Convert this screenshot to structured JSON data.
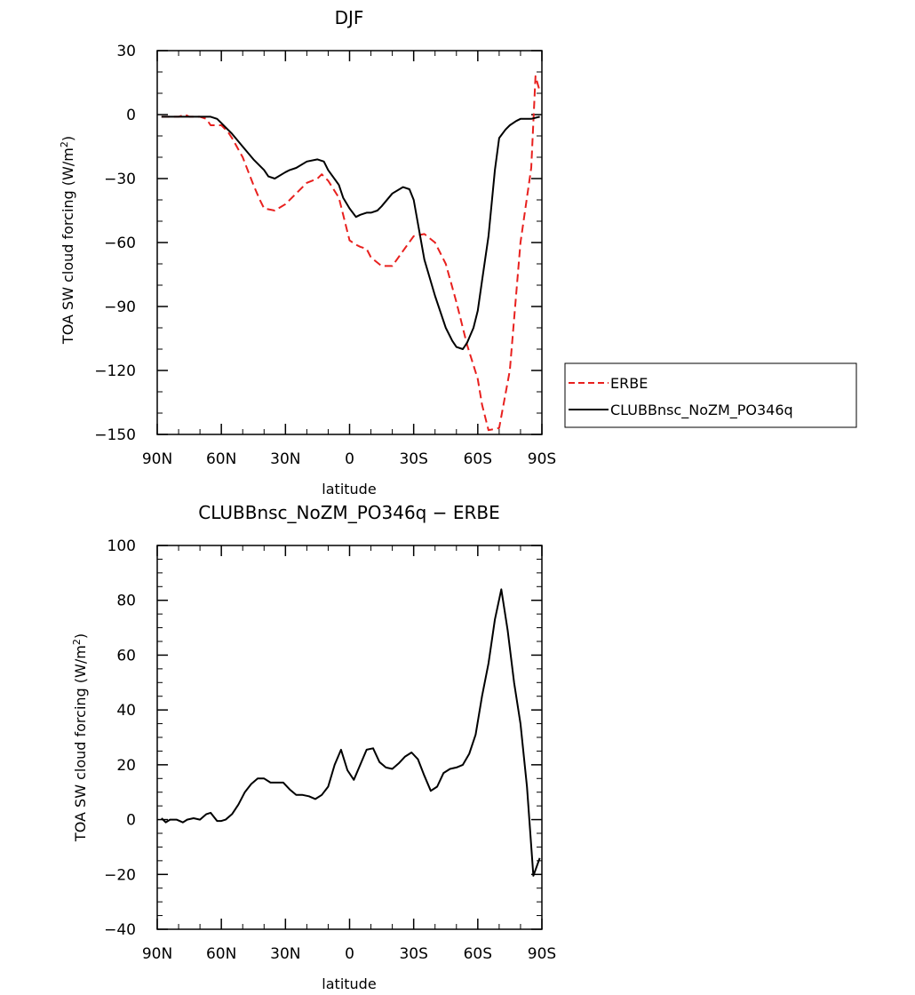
{
  "chart_data": [
    {
      "type": "line",
      "title": "DJF",
      "xlabel": "latitude",
      "ylabel": "TOA SW cloud forcing (W/m²)",
      "ylabel_base": "TOA SW cloud forcing (W/m",
      "ylabel_sup": "2",
      "ylabel_end": ")",
      "xlim": [
        90,
        -90
      ],
      "ylim": [
        -150,
        30
      ],
      "x_ticks": [
        90,
        60,
        30,
        0,
        -30,
        -60,
        -90
      ],
      "x_tick_labels": [
        "90N",
        "60N",
        "30N",
        "0",
        "30S",
        "60S",
        "90S"
      ],
      "y_ticks": [
        30,
        0,
        -30,
        -60,
        -90,
        -120,
        -150
      ],
      "y_tick_labels": [
        "30",
        "0",
        "−30",
        "−60",
        "−90",
        "−120",
        "−150"
      ],
      "legend_position": "right",
      "series": [
        {
          "name": "ERBE",
          "color": "#e8201e",
          "dash": "dashed",
          "x": [
            88,
            85,
            80,
            77,
            75,
            70,
            67,
            65,
            60,
            57,
            55,
            50,
            45,
            42,
            40,
            35,
            30,
            25,
            20,
            15,
            13,
            10,
            5,
            3,
            0,
            -3,
            -5,
            -8,
            -10,
            -15,
            -20,
            -25,
            -30,
            -35,
            -40,
            -45,
            -50,
            -55,
            -60,
            -62,
            -65,
            -70,
            -75,
            -80,
            -85,
            -87,
            -89
          ],
          "y": [
            -1,
            -1,
            -1,
            0,
            -1,
            -1,
            -2,
            -5,
            -5,
            -8,
            -11,
            -20,
            -33,
            -40,
            -44,
            -45,
            -42,
            -37,
            -32,
            -30,
            -28,
            -31,
            -39,
            -47,
            -59,
            -61,
            -62,
            -63,
            -67,
            -71,
            -71,
            -64,
            -57,
            -56,
            -60,
            -70,
            -88,
            -108,
            -124,
            -136,
            -148,
            -147,
            -120,
            -60,
            -25,
            18,
            11
          ]
        },
        {
          "name": "CLUBBnsc_NoZM_PO346q",
          "color": "#000000",
          "dash": "solid",
          "x": [
            88,
            85,
            80,
            75,
            70,
            65,
            62,
            60,
            55,
            50,
            45,
            40,
            38,
            35,
            30,
            28,
            25,
            20,
            15,
            12,
            10,
            5,
            3,
            0,
            -3,
            -5,
            -8,
            -10,
            -13,
            -15,
            -20,
            -25,
            -28,
            -30,
            -35,
            -40,
            -45,
            -48,
            -50,
            -53,
            -55,
            -58,
            -60,
            -62,
            -65,
            -68,
            -70,
            -73,
            -75,
            -78,
            -80,
            -85,
            -89
          ],
          "y": [
            -1,
            -1,
            -1,
            -1,
            -1,
            -1,
            -2,
            -4,
            -9,
            -15,
            -21,
            -26,
            -29,
            -30,
            -27,
            -26,
            -25,
            -22,
            -21,
            -22,
            -26,
            -33,
            -39,
            -44,
            -48,
            -47,
            -46,
            -46,
            -45,
            -43,
            -37,
            -34,
            -35,
            -40,
            -68,
            -85,
            -100,
            -106,
            -109,
            -110,
            -107,
            -100,
            -92,
            -78,
            -57,
            -26,
            -11,
            -7,
            -5,
            -3,
            -2,
            -2,
            -1
          ]
        }
      ]
    },
    {
      "type": "line",
      "title": "CLUBBnsc_NoZM_PO346q − ERBE",
      "xlabel": "latitude",
      "ylabel": "TOA SW cloud forcing (W/m²)",
      "ylabel_base": "TOA SW cloud forcing (W/m",
      "ylabel_sup": "2",
      "ylabel_end": ")",
      "xlim": [
        90,
        -90
      ],
      "ylim": [
        -40,
        100
      ],
      "x_ticks": [
        90,
        60,
        30,
        0,
        -30,
        -60,
        -90
      ],
      "x_tick_labels": [
        "90N",
        "60N",
        "30N",
        "0",
        "30S",
        "60S",
        "90S"
      ],
      "y_ticks": [
        100,
        80,
        60,
        40,
        20,
        0,
        -20,
        -40
      ],
      "y_tick_labels": [
        "100",
        "80",
        "60",
        "40",
        "20",
        "0",
        "−20",
        "−40"
      ],
      "series": [
        {
          "name": "",
          "color": "#000000",
          "dash": "solid",
          "x": [
            88,
            86,
            84,
            81,
            78,
            76,
            73,
            70,
            67,
            65,
            62,
            60,
            58,
            55,
            52,
            49,
            46,
            43,
            40,
            37,
            34,
            31,
            28,
            25,
            22,
            19,
            16,
            13,
            10,
            7,
            4,
            1,
            -2,
            -5,
            -8,
            -11,
            -14,
            -17,
            -20,
            -23,
            -26,
            -29,
            -32,
            -35,
            -38,
            -41,
            -44,
            -47,
            -50,
            -53,
            -56,
            -59,
            -62,
            -65,
            -68,
            -71,
            -74,
            -77,
            -80,
            -83,
            -86,
            -89
          ],
          "y": [
            0.5,
            -1,
            0,
            0,
            -1,
            0,
            0.5,
            0,
            2,
            2.5,
            -0.5,
            -0.5,
            0,
            2,
            5.5,
            10,
            13,
            15,
            15,
            13.5,
            13.5,
            13.5,
            11,
            9,
            9,
            8.5,
            7.5,
            9,
            12,
            20,
            25.5,
            18,
            14.5,
            20,
            25.5,
            26,
            21,
            19,
            18.5,
            20.5,
            23,
            24.5,
            22,
            16,
            10.5,
            12,
            17,
            18.5,
            19,
            20,
            24,
            31,
            45,
            57,
            73,
            84,
            69,
            50,
            35,
            12,
            -20.5,
            -14
          ]
        }
      ]
    }
  ]
}
